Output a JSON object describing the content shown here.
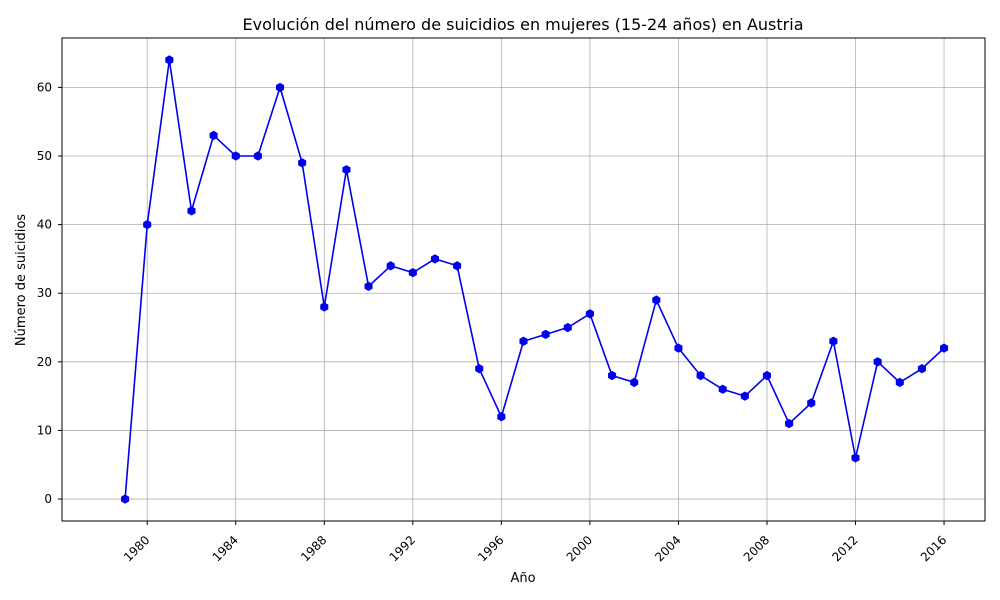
{
  "chart_data": {
    "type": "line",
    "title": "Evolución del número de suicidios en mujeres (15-24 años) en Austria",
    "xlabel": "Año",
    "ylabel": "Número de suicidios",
    "x": [
      1979,
      1980,
      1981,
      1982,
      1983,
      1984,
      1985,
      1986,
      1987,
      1988,
      1989,
      1990,
      1991,
      1992,
      1993,
      1994,
      1995,
      1996,
      1997,
      1998,
      1999,
      2000,
      2001,
      2002,
      2003,
      2004,
      2005,
      2006,
      2007,
      2008,
      2009,
      2010,
      2011,
      2012,
      2013,
      2014,
      2015,
      2016
    ],
    "series": [
      {
        "values": [
          0,
          40,
          64,
          42,
          53,
          50,
          50,
          60,
          49,
          28,
          48,
          31,
          34,
          33,
          35,
          34,
          19,
          12,
          23,
          24,
          25,
          27,
          18,
          17,
          29,
          22,
          18,
          16,
          15,
          18,
          11,
          14,
          23,
          6,
          20,
          17,
          19,
          22
        ],
        "color": "#0000ee",
        "marker": "hexagon"
      }
    ],
    "xticks": [
      "1980",
      "1984",
      "1988",
      "1992",
      "1996",
      "2000",
      "2004",
      "2008",
      "2012",
      "2016"
    ],
    "yticks": [
      "0",
      "10",
      "20",
      "30",
      "40",
      "50",
      "60"
    ],
    "xlim": [
      1976.15,
      2017.85
    ],
    "ylim": [
      -3.2,
      67.2
    ],
    "grid": true
  }
}
